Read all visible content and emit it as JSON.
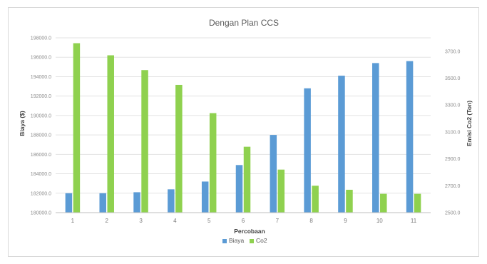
{
  "chart_data": {
    "type": "bar",
    "title": "Dengan Plan CCS",
    "xlabel": "Percobaan",
    "ylabel": "Biaya ($)",
    "y2label": "Emisi Co2 (Ton)",
    "categories": [
      "1",
      "2",
      "3",
      "4",
      "5",
      "6",
      "7",
      "8",
      "9",
      "10",
      "11"
    ],
    "y_ticks": [
      "180000.0",
      "182000.0",
      "184000.0",
      "186000.0",
      "188000.0",
      "190000.0",
      "192000.0",
      "194000.0",
      "196000.0",
      "198000.0"
    ],
    "y2_ticks": [
      "2500.0",
      "2700.0",
      "2900.0",
      "3100.0",
      "3300.0",
      "3500.0",
      "3700.0"
    ],
    "ylim": [
      180000,
      198000
    ],
    "y2lim": [
      2500,
      3800
    ],
    "series": [
      {
        "name": "Biaya",
        "axis": "left",
        "color": "#5b9bd5",
        "values": [
          182000,
          182000,
          182100,
          182400,
          183200,
          184900,
          188000,
          192800,
          194100,
          195400,
          195600
        ]
      },
      {
        "name": "Co2",
        "axis": "right",
        "color": "#8fd14f",
        "values": [
          3760,
          3670,
          3560,
          3450,
          3240,
          2990,
          2820,
          2700,
          2670,
          2640,
          2640
        ]
      }
    ],
    "legend_position": "bottom",
    "grid": "horizontal"
  }
}
